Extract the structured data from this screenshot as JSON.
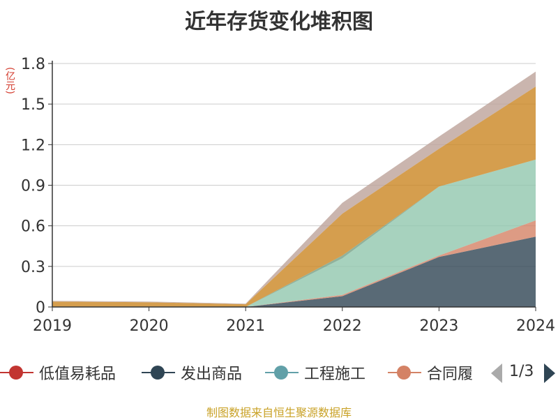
{
  "title": "近年存货变化堆积图",
  "unit": "(亿元)",
  "source": "制图数据来自恒生聚源数据库",
  "legend": {
    "items": [
      {
        "label": "低值易耗品",
        "color": "#c23531"
      },
      {
        "label": "发出商品",
        "color": "#2f4554"
      },
      {
        "label": "工程施工",
        "color": "#61a0a8"
      },
      {
        "label": "合同履",
        "color": "#d48265"
      }
    ],
    "pager": {
      "text": "1/3"
    }
  },
  "chart_data": {
    "type": "area",
    "stacked": true,
    "categories": [
      "2019",
      "2020",
      "2021",
      "2022",
      "2023",
      "2024"
    ],
    "ylim": [
      0,
      1.8
    ],
    "yticks": [
      0,
      0.3,
      0.6,
      0.9,
      1.2,
      1.5,
      1.8
    ],
    "ytick_labels": [
      "0",
      "0.3",
      "0.6",
      "0.9",
      "1.2",
      "1.5",
      "1.8"
    ],
    "ylabel": "(亿元)",
    "grid": true,
    "legend_position": "bottom",
    "series": [
      {
        "name": "低值易耗品",
        "color": "#c23531",
        "values": [
          0,
          0,
          0,
          0,
          0,
          0
        ]
      },
      {
        "name": "发出商品",
        "color": "#2f4554",
        "values": [
          0,
          0,
          0,
          0.08,
          0.37,
          0.52
        ]
      },
      {
        "name": "工程施工",
        "color": "#61a0a8",
        "values": [
          0,
          0,
          0,
          0,
          0,
          0
        ]
      },
      {
        "color": "#d48265",
        "values": [
          0,
          0,
          0,
          0.01,
          0.01,
          0.12
        ]
      },
      {
        "color": "#91c7ae",
        "values": [
          0,
          0,
          0,
          0.27,
          0.51,
          0.45
        ]
      },
      {
        "color": "#749f83",
        "values": [
          0,
          0,
          0,
          0.02,
          0,
          0
        ]
      },
      {
        "color": "#ca8622",
        "values": [
          0.04,
          0.035,
          0.02,
          0.31,
          0.28,
          0.54
        ]
      },
      {
        "color": "#bda29a",
        "values": [
          0.005,
          0.005,
          0.005,
          0.08,
          0.09,
          0.11
        ]
      }
    ]
  }
}
